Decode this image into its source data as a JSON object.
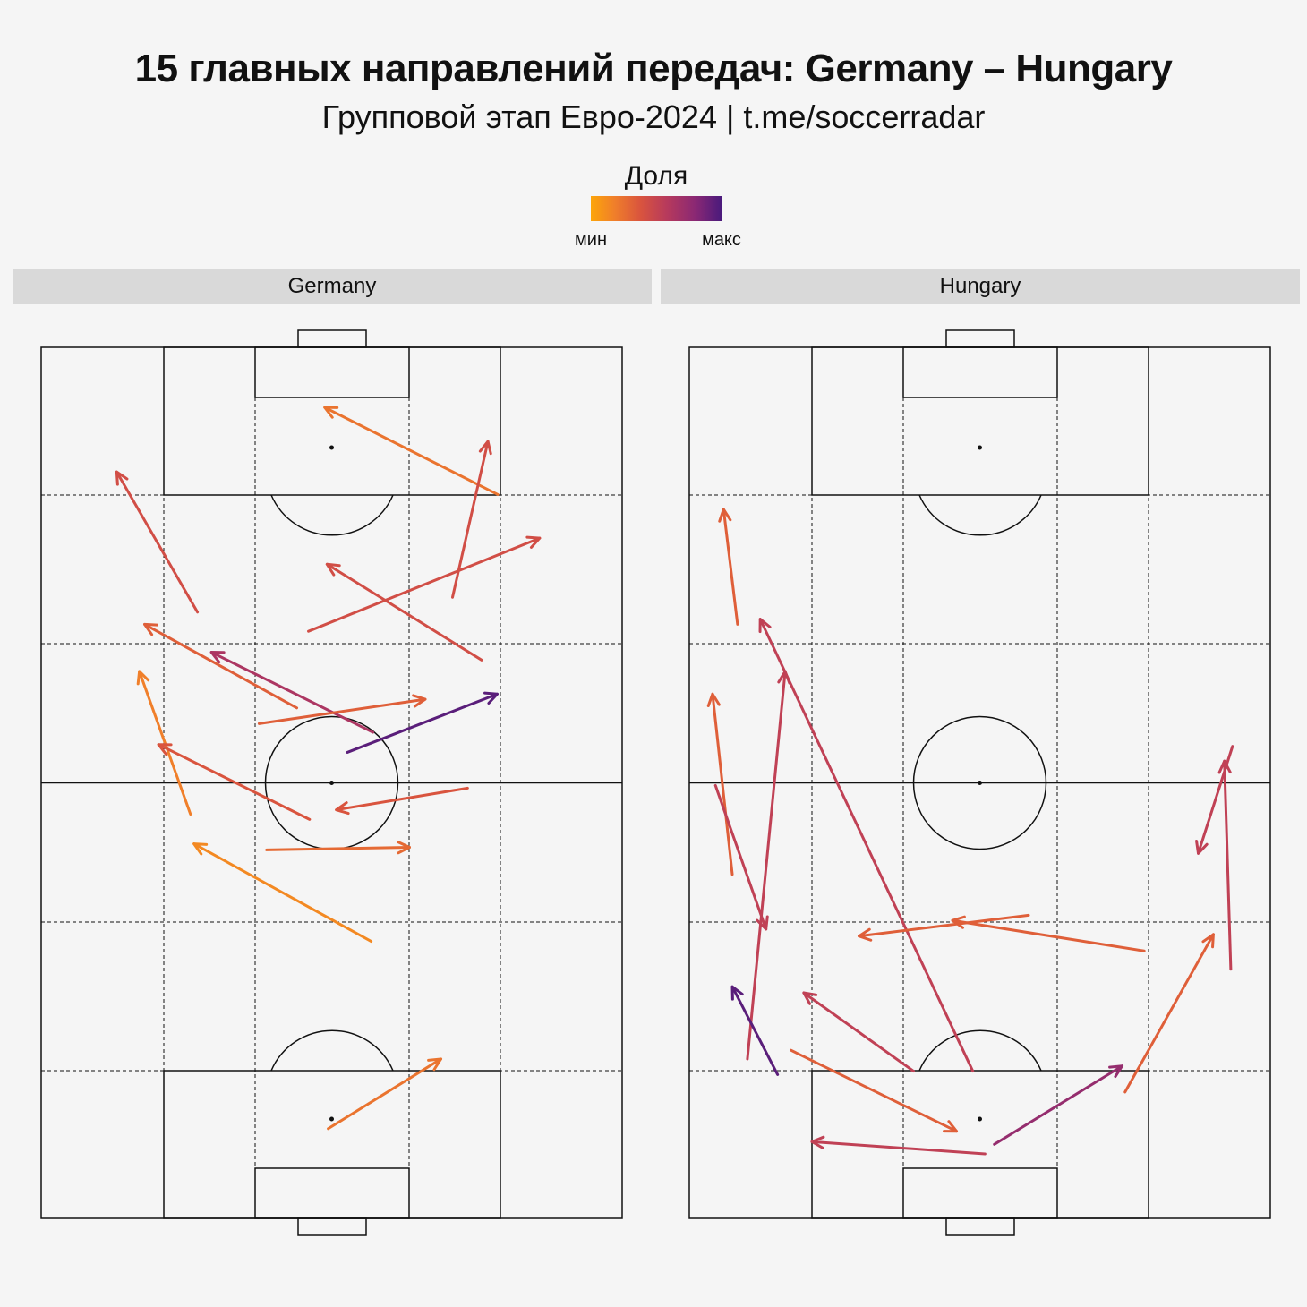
{
  "title": "15 главных направлений передач: Germany – Hungary",
  "subtitle": "Групповой этап Евро-2024 | t.me/soccerradar",
  "legend": {
    "title": "Доля",
    "min_label": "мин",
    "max_label": "макс"
  },
  "colors": {
    "background": "#f5f5f5",
    "strip": "#d9d9d9",
    "lines": "#111111",
    "scale": [
      "#fca50a",
      "#f07f2a",
      "#d9543e",
      "#b73a5c",
      "#8a2874",
      "#4a1a7c"
    ]
  },
  "chart_data": [
    {
      "type": "pass-map",
      "panel": "Germany",
      "x_range": [
        0,
        100
      ],
      "y_range": [
        0,
        100
      ],
      "passes": [
        {
          "from": [
            26.9,
            69.6
          ],
          "to": [
            13.0,
            85.7
          ],
          "share": 0.45
        },
        {
          "from": [
            78.6,
            83.1
          ],
          "to": [
            48.8,
            93.1
          ],
          "share": 0.25
        },
        {
          "from": [
            70.8,
            71.3
          ],
          "to": [
            76.9,
            89.2
          ],
          "share": 0.45
        },
        {
          "from": [
            46.0,
            67.4
          ],
          "to": [
            85.8,
            78.1
          ],
          "share": 0.45
        },
        {
          "from": [
            75.8,
            64.1
          ],
          "to": [
            49.2,
            75.1
          ],
          "share": 0.45
        },
        {
          "from": [
            44.0,
            58.6
          ],
          "to": [
            17.8,
            68.2
          ],
          "share": 0.35
        },
        {
          "from": [
            57.1,
            55.8
          ],
          "to": [
            29.3,
            65.0
          ],
          "share": 0.65
        },
        {
          "from": [
            37.5,
            56.8
          ],
          "to": [
            66.1,
            59.6
          ],
          "share": 0.35
        },
        {
          "from": [
            52.7,
            53.5
          ],
          "to": [
            78.5,
            60.2
          ],
          "share": 0.95
        },
        {
          "from": [
            25.7,
            46.4
          ],
          "to": [
            16.9,
            62.8
          ],
          "share": 0.2
        },
        {
          "from": [
            46.2,
            45.8
          ],
          "to": [
            20.2,
            54.4
          ],
          "share": 0.4
        },
        {
          "from": [
            73.4,
            49.4
          ],
          "to": [
            50.8,
            46.9
          ],
          "share": 0.4
        },
        {
          "from": [
            38.8,
            42.3
          ],
          "to": [
            63.4,
            42.6
          ],
          "share": 0.3
        },
        {
          "from": [
            56.8,
            31.8
          ],
          "to": [
            26.3,
            43.0
          ],
          "share": 0.15
        },
        {
          "from": [
            49.4,
            10.3
          ],
          "to": [
            68.8,
            18.3
          ],
          "share": 0.25
        }
      ]
    },
    {
      "type": "pass-map",
      "panel": "Hungary",
      "x_range": [
        0,
        100
      ],
      "y_range": [
        0,
        100
      ],
      "passes": [
        {
          "from": [
            8.3,
            68.2
          ],
          "to": [
            5.9,
            81.4
          ],
          "share": 0.35
        },
        {
          "from": [
            48.8,
            16.9
          ],
          "to": [
            12.2,
            68.8
          ],
          "share": 0.55
        },
        {
          "from": [
            7.4,
            39.5
          ],
          "to": [
            4.0,
            60.2
          ],
          "share": 0.35
        },
        {
          "from": [
            10.0,
            18.3
          ],
          "to": [
            16.5,
            62.8
          ],
          "share": 0.55
        },
        {
          "from": [
            4.5,
            49.7
          ],
          "to": [
            13.2,
            33.2
          ],
          "share": 0.55
        },
        {
          "from": [
            93.5,
            54.2
          ],
          "to": [
            87.6,
            41.9
          ],
          "share": 0.55
        },
        {
          "from": [
            93.2,
            28.6
          ],
          "to": [
            92.1,
            52.5
          ],
          "share": 0.55
        },
        {
          "from": [
            58.4,
            34.8
          ],
          "to": [
            29.2,
            32.4
          ],
          "share": 0.35
        },
        {
          "from": [
            78.3,
            30.7
          ],
          "to": [
            45.3,
            34.2
          ],
          "share": 0.35
        },
        {
          "from": [
            15.2,
            16.5
          ],
          "to": [
            7.4,
            26.6
          ],
          "share": 0.95
        },
        {
          "from": [
            38.6,
            16.9
          ],
          "to": [
            19.7,
            25.9
          ],
          "share": 0.55
        },
        {
          "from": [
            17.5,
            19.3
          ],
          "to": [
            46.0,
            10.0
          ],
          "share": 0.35
        },
        {
          "from": [
            50.9,
            7.4
          ],
          "to": [
            21.1,
            8.8
          ],
          "share": 0.55
        },
        {
          "from": [
            52.5,
            8.5
          ],
          "to": [
            74.5,
            17.5
          ],
          "share": 0.75
        },
        {
          "from": [
            75.0,
            14.5
          ],
          "to": [
            90.2,
            32.6
          ],
          "share": 0.35
        }
      ]
    }
  ]
}
